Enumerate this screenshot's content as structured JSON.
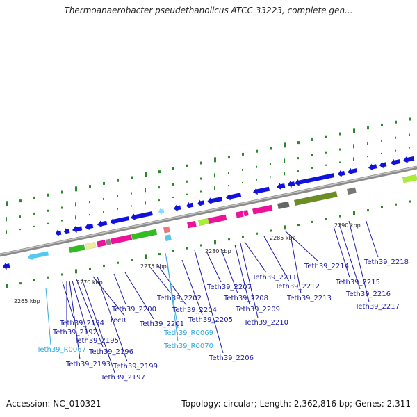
{
  "title": "Thermoanaerobacter pseudethanolicus ATCC 33223, complete gen...",
  "footer": {
    "accession": "Accession: NC_010321",
    "info": "Topology: circular; Length: 2,362,816 bp; Genes: 2,311"
  },
  "colors": {
    "gene_label": "#1a1aa6",
    "rna_label": "#33aadd",
    "cds": "#1111dd",
    "rna": "#55c8f0",
    "backbone": "#8a8a8a",
    "ticks": "#2a8a2a"
  },
  "scale_labels": [
    "2265 kbp",
    "2270 kbp",
    "2275 kbp",
    "2280 kbp",
    "2285 kbp",
    "2290 kbp"
  ],
  "gene_labels": [
    "Teth39_2194",
    "Teth39_2192",
    "Teth39_R0067",
    "Teth39_2195",
    "Teth39_2193",
    "Teth39_2196",
    "recR",
    "Teth39_2197",
    "Teth39_2199",
    "Teth39_2200",
    "Teth39_2201",
    "Teth39_2202",
    "Teth39_2204",
    "Teth39_R0069",
    "Teth39_R0070",
    "Teth39_2205",
    "Teth39_2206",
    "Teth39_2207",
    "Teth39_2208",
    "Teth39_2209",
    "Teth39_2210",
    "Teth39_2211",
    "Teth39_2212",
    "Teth39_2213",
    "Teth39_2214",
    "Teth39_2215",
    "Teth39_2216",
    "Teth39_2217",
    "Teth39_2218"
  ]
}
